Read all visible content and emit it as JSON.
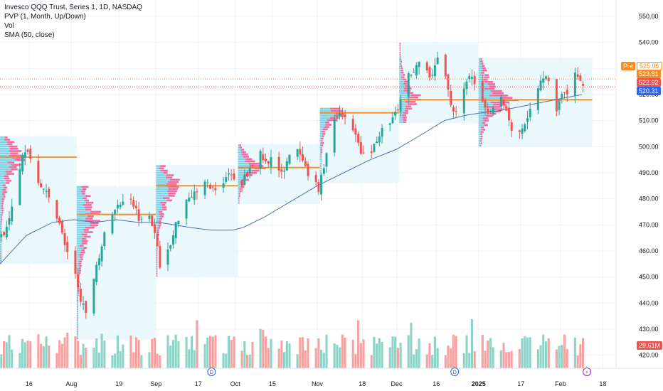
{
  "legend": {
    "symbol": "Invesco QQQ Trust, Series 1, 1D, NASDAQ",
    "pvp": "PVP (1, Month, Up/Down)",
    "vol": "Vol",
    "sma": "SMA (50, close)"
  },
  "badges": {
    "pre_tag": "Pre",
    "pre_price": "525.95",
    "last_price": "523.81",
    "close_price": "522.92",
    "sma_value": "520.31",
    "volume": "29.61M"
  },
  "events": {
    "dividend": "D",
    "earnings": "⚡"
  },
  "colors": {
    "up": "#26a69a",
    "down": "#ef5350",
    "sma": "#4a6fb5",
    "poc": "#f68b1f",
    "vol_up": "#8fd3c8",
    "vol_down": "#f4a3a3",
    "pre": "#f68b1f",
    "sma_badge": "#2962ff"
  },
  "chart_data": {
    "type": "candlestick",
    "title": "Invesco QQQ Trust, Series 1, 1D, NASDAQ",
    "y_ticks": [
      420,
      430,
      440,
      450,
      460,
      470,
      480,
      490,
      500,
      510,
      520,
      530,
      540,
      550
    ],
    "ylim": [
      415,
      553
    ],
    "x_ticks": [
      {
        "label": "16",
        "day": 11
      },
      {
        "label": "Aug",
        "day": 27
      },
      {
        "label": "19",
        "day": 45
      },
      {
        "label": "Sep",
        "day": 59
      },
      {
        "label": "17",
        "day": 75
      },
      {
        "label": "Oct",
        "day": 89
      },
      {
        "label": "15",
        "day": 103
      },
      {
        "label": "Nov",
        "day": 120
      },
      {
        "label": "18",
        "day": 137
      },
      {
        "label": "Dec",
        "day": 150
      },
      {
        "label": "16",
        "day": 165
      },
      {
        "label": "2025",
        "day": 181
      },
      {
        "label": "17",
        "day": 197
      },
      {
        "label": "Feb",
        "day": 212
      },
      {
        "label": "18",
        "day": 228
      }
    ],
    "close_path": [
      [
        0,
        465
      ],
      [
        2,
        470
      ],
      [
        4,
        478
      ],
      [
        6,
        485
      ],
      [
        8,
        496
      ],
      [
        10,
        499
      ],
      [
        12,
        492
      ],
      [
        14,
        487
      ],
      [
        16,
        484
      ],
      [
        18,
        480
      ],
      [
        20,
        476
      ],
      [
        22,
        471
      ],
      [
        24,
        462
      ],
      [
        26,
        458
      ],
      [
        28,
        450
      ],
      [
        30,
        442
      ],
      [
        32,
        435
      ],
      [
        34,
        446
      ],
      [
        36,
        455
      ],
      [
        38,
        462
      ],
      [
        40,
        470
      ],
      [
        42,
        474
      ],
      [
        44,
        477
      ],
      [
        46,
        480
      ],
      [
        48,
        484
      ],
      [
        50,
        478
      ],
      [
        52,
        473
      ],
      [
        54,
        472
      ],
      [
        56,
        475
      ],
      [
        58,
        466
      ],
      [
        60,
        455
      ],
      [
        62,
        458
      ],
      [
        64,
        462
      ],
      [
        66,
        470
      ],
      [
        68,
        476
      ],
      [
        70,
        480
      ],
      [
        72,
        482
      ],
      [
        74,
        483
      ],
      [
        76,
        485
      ],
      [
        78,
        486
      ],
      [
        80,
        484
      ],
      [
        82,
        483
      ],
      [
        84,
        487
      ],
      [
        86,
        490
      ],
      [
        88,
        487
      ],
      [
        90,
        484
      ],
      [
        92,
        488
      ],
      [
        94,
        492
      ],
      [
        96,
        495
      ],
      [
        98,
        497
      ],
      [
        100,
        494
      ],
      [
        102,
        496
      ],
      [
        104,
        492
      ],
      [
        106,
        489
      ],
      [
        108,
        495
      ],
      [
        110,
        499
      ],
      [
        112,
        498
      ],
      [
        114,
        494
      ],
      [
        116,
        488
      ],
      [
        118,
        486
      ],
      [
        120,
        484
      ],
      [
        122,
        492
      ],
      [
        124,
        503
      ],
      [
        126,
        511
      ],
      [
        128,
        513
      ],
      [
        130,
        512
      ],
      [
        132,
        508
      ],
      [
        134,
        505
      ],
      [
        136,
        497
      ],
      [
        138,
        496
      ],
      [
        140,
        499
      ],
      [
        142,
        503
      ],
      [
        144,
        506
      ],
      [
        146,
        509
      ],
      [
        148,
        511
      ],
      [
        150,
        514
      ],
      [
        152,
        522
      ],
      [
        154,
        527
      ],
      [
        156,
        530
      ],
      [
        158,
        532
      ],
      [
        160,
        531
      ],
      [
        162,
        525
      ],
      [
        164,
        532
      ],
      [
        166,
        535
      ],
      [
        168,
        527
      ],
      [
        170,
        516
      ],
      [
        172,
        513
      ],
      [
        174,
        519
      ],
      [
        176,
        524
      ],
      [
        178,
        528
      ],
      [
        180,
        521
      ],
      [
        182,
        516
      ],
      [
        184,
        514
      ],
      [
        186,
        516
      ],
      [
        188,
        520
      ],
      [
        190,
        517
      ],
      [
        192,
        510
      ],
      [
        194,
        504
      ],
      [
        196,
        505
      ],
      [
        198,
        510
      ],
      [
        200,
        514
      ],
      [
        202,
        520
      ],
      [
        204,
        526
      ],
      [
        206,
        528
      ],
      [
        208,
        524
      ],
      [
        210,
        515
      ],
      [
        212,
        519
      ],
      [
        214,
        521
      ],
      [
        216,
        526
      ],
      [
        218,
        528
      ],
      [
        220,
        524
      ]
    ],
    "sma": [
      [
        0,
        455
      ],
      [
        10,
        466
      ],
      [
        20,
        471
      ],
      [
        28,
        472
      ],
      [
        36,
        471
      ],
      [
        44,
        472
      ],
      [
        52,
        471
      ],
      [
        60,
        471
      ],
      [
        66,
        470
      ],
      [
        72,
        469
      ],
      [
        80,
        468
      ],
      [
        88,
        468
      ],
      [
        92,
        469
      ],
      [
        100,
        473
      ],
      [
        110,
        479
      ],
      [
        120,
        485
      ],
      [
        130,
        490
      ],
      [
        140,
        495
      ],
      [
        150,
        499
      ],
      [
        160,
        505
      ],
      [
        168,
        510
      ],
      [
        176,
        512
      ],
      [
        182,
        513
      ],
      [
        190,
        514
      ],
      [
        200,
        516
      ],
      [
        210,
        518
      ],
      [
        220,
        520
      ]
    ],
    "profiles": [
      {
        "start": 0,
        "end": 28,
        "low": 455,
        "high": 504,
        "poc": 496
      },
      {
        "start": 29,
        "end": 58,
        "low": 426,
        "high": 485,
        "poc": 474
      },
      {
        "start": 59,
        "end": 89,
        "low": 450,
        "high": 493,
        "poc": 485
      },
      {
        "start": 90,
        "end": 120,
        "low": 478,
        "high": 501,
        "poc": 492
      },
      {
        "start": 121,
        "end": 150,
        "low": 486,
        "high": 515,
        "poc": 513
      },
      {
        "start": 151,
        "end": 180,
        "low": 509,
        "high": 540,
        "poc": 518
      },
      {
        "start": 181,
        "end": 223,
        "low": 500,
        "high": 534,
        "poc": 518
      }
    ],
    "levels": {
      "pre": 525.95,
      "last": 523.81,
      "close": 522.92,
      "sma": 520.31
    },
    "volume_last": "29.61M",
    "events": [
      {
        "type": "dividend",
        "day": 80,
        "label": "D"
      },
      {
        "type": "dividend",
        "day": 172,
        "label": "D"
      },
      {
        "type": "earnings",
        "day": 222,
        "label": "⚡"
      }
    ]
  }
}
